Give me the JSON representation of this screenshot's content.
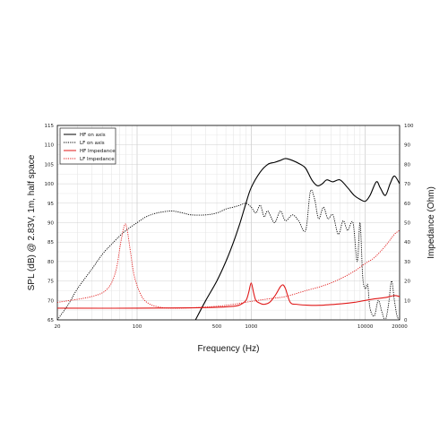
{
  "chart_data": {
    "type": "line",
    "title": "",
    "xlabel": "Frequency (Hz)",
    "ylabel": "SPL (dB) @ 2.83V, 1m, half space",
    "y2label": "Impedance (Ohm)",
    "x_scale": "log",
    "xlim": [
      20,
      20000
    ],
    "ylim": [
      65,
      115
    ],
    "y2lim": [
      0,
      100
    ],
    "x_ticks": [
      20,
      100,
      500,
      1000,
      10000,
      20000
    ],
    "x_tick_labels": [
      "20",
      "100",
      "500",
      "1000",
      "10000",
      "20000"
    ],
    "y_ticks": [
      65,
      70,
      75,
      80,
      85,
      90,
      95,
      100,
      105,
      110,
      115
    ],
    "y2_ticks": [
      0,
      10,
      20,
      30,
      40,
      50,
      60,
      70,
      80,
      90,
      100
    ],
    "grid": true,
    "legend_position": "top-left",
    "series": [
      {
        "name": "HF on axis",
        "axis": "left",
        "color": "#000000",
        "style": "solid",
        "x": [
          325,
          400,
          500,
          600,
          700,
          800,
          900,
          1000,
          1200,
          1400,
          1600,
          1800,
          2000,
          2300,
          2700,
          3000,
          3400,
          3800,
          4200,
          4600,
          5200,
          6000,
          7000,
          8000,
          9000,
          10000,
          11000,
          12500,
          13500,
          15000,
          16500,
          18000,
          20000
        ],
        "y": [
          65,
          70,
          75,
          80,
          85,
          90,
          95,
          99,
          103,
          105,
          105.5,
          106,
          106.5,
          106,
          105,
          104,
          101,
          99.5,
          100,
          101,
          100.5,
          101,
          99,
          97,
          96,
          95.5,
          97,
          100.5,
          99,
          97,
          100,
          102,
          100
        ]
      },
      {
        "name": "LF on axis",
        "axis": "left",
        "color": "#000000",
        "style": "dotted",
        "x": [
          20,
          25,
          30,
          40,
          50,
          60,
          70,
          80,
          100,
          120,
          150,
          200,
          250,
          300,
          400,
          500,
          600,
          700,
          800,
          900,
          1000,
          1100,
          1200,
          1300,
          1400,
          1600,
          1800,
          2000,
          2300,
          2600,
          3000,
          3300,
          3600,
          3900,
          4300,
          4700,
          5200,
          5800,
          6400,
          7000,
          7800,
          8500,
          9000,
          9500,
          10000,
          10500,
          11000,
          12000,
          13000,
          14000,
          15000,
          16000,
          17000,
          18000,
          19000,
          20000
        ],
        "y": [
          65,
          69,
          73,
          78,
          82,
          84.5,
          86.5,
          88,
          90,
          91.5,
          92.5,
          93,
          92.5,
          92,
          92,
          92.5,
          93.5,
          94,
          94.5,
          95,
          94,
          92.5,
          94.5,
          91.5,
          93,
          90,
          93,
          90.5,
          92,
          90.5,
          88,
          98,
          96,
          91,
          94,
          91,
          92,
          87,
          90.5,
          88,
          90,
          80,
          90,
          76,
          73,
          74,
          68,
          66,
          70,
          67,
          65,
          69,
          75,
          70,
          66,
          65
        ]
      },
      {
        "name": "HF Impedance",
        "axis": "right",
        "color": "#e01818",
        "style": "solid",
        "x": [
          20,
          100,
          300,
          500,
          700,
          800,
          900,
          950,
          1000,
          1050,
          1100,
          1200,
          1300,
          1450,
          1600,
          1700,
          1800,
          1900,
          2000,
          2200,
          2500,
          3000,
          4000,
          6000,
          8000,
          10000,
          12000,
          15000,
          18000,
          20000
        ],
        "y": [
          6,
          6,
          6.2,
          6.5,
          7,
          7.8,
          10,
          14,
          19,
          14,
          10,
          8.5,
          8,
          9,
          12,
          14.5,
          17,
          18,
          16,
          9,
          8,
          7.6,
          7.5,
          8.2,
          9,
          10,
          10.8,
          11.5,
          12.5,
          12
        ]
      },
      {
        "name": "LF Impedance",
        "axis": "right",
        "color": "#e01818",
        "style": "dotted",
        "x": [
          20,
          40,
          55,
          65,
          72,
          78,
          82,
          88,
          95,
          110,
          130,
          160,
          200,
          300,
          500,
          700,
          1000,
          1500,
          2000,
          3000,
          4000,
          5000,
          6000,
          8000,
          10000,
          12000,
          15000,
          18000,
          20000
        ],
        "y": [
          9,
          12,
          16,
          25,
          40,
          49,
          46,
          34,
          22,
          12,
          8,
          6.5,
          6,
          6.2,
          7,
          8,
          9.5,
          11,
          12,
          15,
          17,
          19,
          21,
          25,
          29,
          32,
          38,
          44,
          46
        ]
      }
    ]
  }
}
